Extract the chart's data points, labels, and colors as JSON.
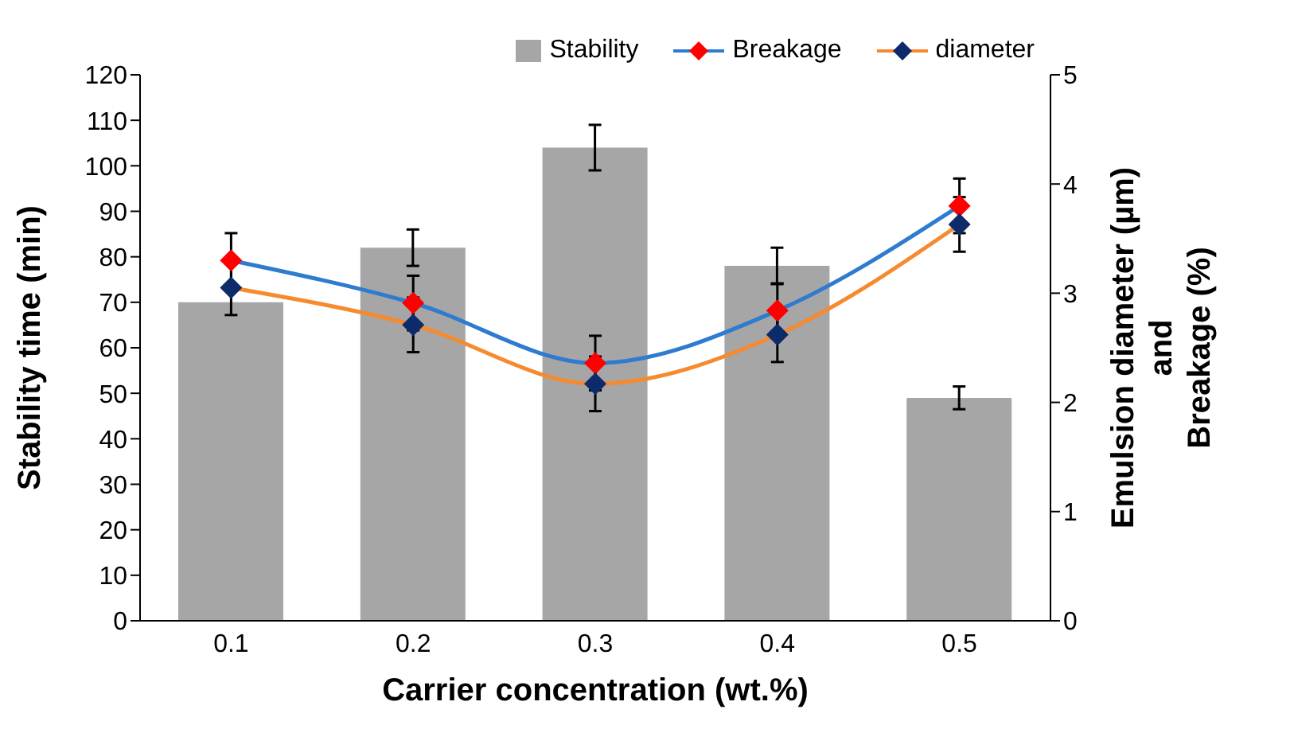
{
  "chart_data": {
    "type": "bar",
    "xlabel": "Carrier concentration (wt.%)",
    "ylabel": "Stability time (min)",
    "y2label": "Emulsion diameter (µm)\nand\nBreakage (%)",
    "categories": [
      "0.1",
      "0.2",
      "0.3",
      "0.4",
      "0.5"
    ],
    "series": [
      {
        "name": "Stability",
        "color": "#a6a6a6",
        "values": [
          70,
          82,
          104,
          78,
          49
        ],
        "errors": [
          null,
          4,
          5,
          4,
          2.5
        ]
      },
      {
        "name": "Breakage",
        "type": "line",
        "axis": "y2",
        "color": "#2e7bcf",
        "colors": [
          "#ff0000",
          "#ff0000",
          "#ff0000",
          "#ff0000",
          "#ff0000"
        ],
        "values": [
          3.3,
          2.91,
          2.36,
          2.84,
          3.8
        ],
        "errors": [
          0.25,
          0.25,
          0.25,
          0.25,
          0.25
        ]
      },
      {
        "name": "diameter",
        "type": "line",
        "axis": "y2",
        "color": "#f58a2f",
        "colors": [
          "#0d2a6b",
          "#0d2a6b",
          "#0d2a6b",
          "#0d2a6b",
          "#0d2a6b"
        ],
        "values": [
          3.05,
          2.71,
          2.17,
          2.62,
          3.63
        ],
        "errors": [
          0.25,
          0.25,
          0.25,
          0.25,
          0.25
        ]
      }
    ],
    "ylim": [
      0,
      120
    ],
    "yticks": [
      0,
      10,
      20,
      30,
      40,
      50,
      60,
      70,
      80,
      90,
      100,
      110,
      120
    ],
    "y2lim": [
      0,
      5
    ],
    "y2ticks": [
      0,
      1,
      2,
      3,
      4,
      5
    ],
    "marker": "diamond",
    "legend": "top right"
  }
}
